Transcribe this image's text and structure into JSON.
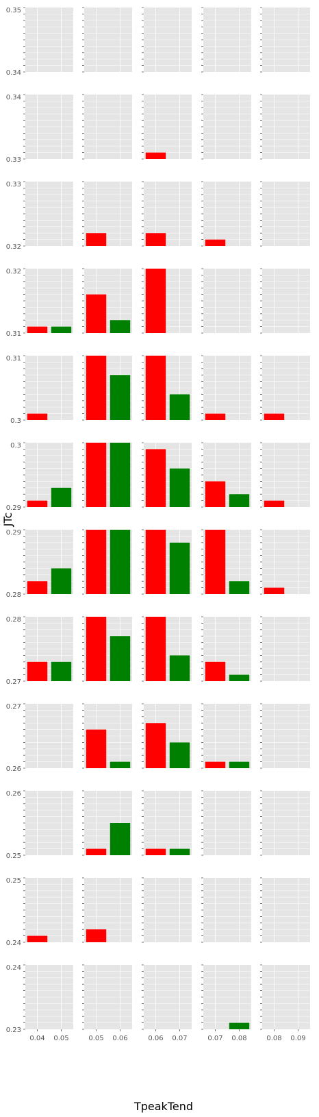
{
  "chart_data": {
    "type": "bar",
    "xlabel": "TpeakTend",
    "ylabel": "JTc",
    "grid": true,
    "colors": {
      "panel_bg": "#e5e5e5",
      "grid": "#ffffff",
      "series_red": "#ff0000",
      "series_green": "#008000"
    },
    "columns": [
      {
        "xticks": [
          "0.04",
          "0.05"
        ]
      },
      {
        "xticks": [
          "0.05",
          "0.06"
        ]
      },
      {
        "xticks": [
          "0.06",
          "0.07"
        ]
      },
      {
        "xticks": [
          "0.07",
          "0.08"
        ]
      },
      {
        "xticks": [
          "0.08",
          "0.09"
        ]
      }
    ],
    "rows": [
      {
        "ylim": [
          0.34,
          0.35
        ],
        "yticks": [
          "0.35",
          "0.34"
        ],
        "bars": [
          [
            0,
            0
          ],
          [
            0,
            0
          ],
          [
            0,
            0
          ],
          [
            0,
            0
          ],
          [
            0,
            0
          ]
        ]
      },
      {
        "ylim": [
          0.33,
          0.34
        ],
        "yticks": [
          "0.34",
          "0.33"
        ],
        "bars": [
          [
            0,
            0
          ],
          [
            0,
            0
          ],
          [
            1,
            0
          ],
          [
            0,
            0
          ],
          [
            0,
            0
          ]
        ]
      },
      {
        "ylim": [
          0.32,
          0.33
        ],
        "yticks": [
          "0.33",
          "0.32"
        ],
        "bars": [
          [
            0,
            0
          ],
          [
            2,
            0
          ],
          [
            2,
            0
          ],
          [
            1,
            0
          ],
          [
            0,
            0
          ]
        ]
      },
      {
        "ylim": [
          0.31,
          0.32
        ],
        "yticks": [
          "0.32",
          "0.31"
        ],
        "bars": [
          [
            1,
            1
          ],
          [
            6,
            2
          ],
          [
            10,
            0
          ],
          [
            0,
            0
          ],
          [
            0,
            0
          ]
        ]
      },
      {
        "ylim": [
          0.3,
          0.31
        ],
        "yticks": [
          "0.31",
          "0.3"
        ],
        "bars": [
          [
            1,
            0
          ],
          [
            10,
            7
          ],
          [
            10,
            4
          ],
          [
            1,
            0
          ],
          [
            1,
            0
          ]
        ]
      },
      {
        "ylim": [
          0.29,
          0.3
        ],
        "yticks": [
          "0.3",
          "0.29"
        ],
        "bars": [
          [
            1,
            3
          ],
          [
            10,
            10
          ],
          [
            9,
            6
          ],
          [
            4,
            2
          ],
          [
            1,
            0
          ]
        ]
      },
      {
        "ylim": [
          0.28,
          0.29
        ],
        "yticks": [
          "0.29",
          "0.28"
        ],
        "bars": [
          [
            2,
            4
          ],
          [
            10,
            10
          ],
          [
            10,
            8
          ],
          [
            10,
            2
          ],
          [
            1,
            0
          ]
        ]
      },
      {
        "ylim": [
          0.27,
          0.28
        ],
        "yticks": [
          "0.28",
          "0.27"
        ],
        "bars": [
          [
            3,
            3
          ],
          [
            10,
            7
          ],
          [
            10,
            4
          ],
          [
            3,
            1
          ],
          [
            0,
            0
          ]
        ]
      },
      {
        "ylim": [
          0.26,
          0.27
        ],
        "yticks": [
          "0.27",
          "0.26"
        ],
        "bars": [
          [
            0,
            0
          ],
          [
            6,
            1
          ],
          [
            7,
            4
          ],
          [
            1,
            1
          ],
          [
            0,
            0
          ]
        ]
      },
      {
        "ylim": [
          0.25,
          0.26
        ],
        "yticks": [
          "0.26",
          "0.25"
        ],
        "bars": [
          [
            0,
            0
          ],
          [
            1,
            5
          ],
          [
            1,
            1
          ],
          [
            0,
            0
          ],
          [
            0,
            0
          ]
        ]
      },
      {
        "ylim": [
          0.24,
          0.25
        ],
        "yticks": [
          "0.25",
          "0.24"
        ],
        "bars": [
          [
            1,
            0
          ],
          [
            2,
            0
          ],
          [
            0,
            0
          ],
          [
            0,
            0
          ],
          [
            0,
            0
          ]
        ]
      },
      {
        "ylim": [
          0.23,
          0.24
        ],
        "yticks": [
          "0.24",
          "0.23"
        ],
        "bars": [
          [
            0,
            0
          ],
          [
            0,
            0
          ],
          [
            0,
            0
          ],
          [
            0,
            1
          ],
          [
            0,
            0
          ]
        ]
      }
    ],
    "bar_ylim": [
      0,
      10
    ]
  }
}
